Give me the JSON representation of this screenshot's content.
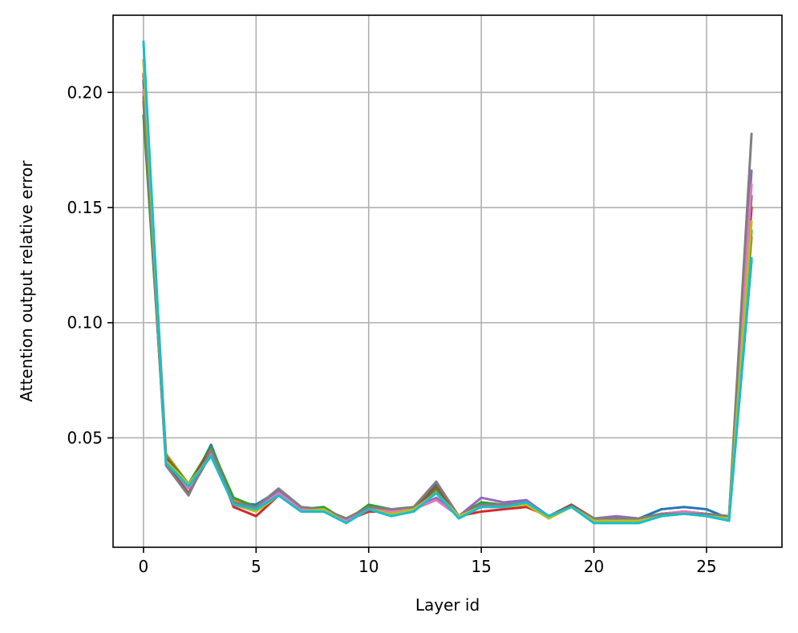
{
  "chart_data": {
    "type": "line",
    "title": "",
    "xlabel": "Layer id",
    "ylabel": "Attention output relative error",
    "xlim": [
      -1.35,
      28.35
    ],
    "ylim": [
      0.0025,
      0.2335
    ],
    "xticks": [
      0,
      5,
      10,
      15,
      20,
      25
    ],
    "xtick_labels": [
      "0",
      "5",
      "10",
      "15",
      "20",
      "25"
    ],
    "yticks": [
      0.05,
      0.1,
      0.15,
      0.2
    ],
    "ytick_labels": [
      "0.05",
      "0.10",
      "0.15",
      "0.20"
    ],
    "grid": true,
    "legend": "none",
    "x": [
      0,
      1,
      2,
      3,
      4,
      5,
      6,
      7,
      8,
      9,
      10,
      11,
      12,
      13,
      14,
      15,
      16,
      17,
      18,
      19,
      20,
      21,
      22,
      23,
      24,
      25,
      26,
      27
    ],
    "series": [
      {
        "color": "#1f77b4",
        "values": [
          0.205,
          0.04,
          0.028,
          0.047,
          0.022,
          0.021,
          0.027,
          0.019,
          0.018,
          0.014,
          0.02,
          0.018,
          0.019,
          0.03,
          0.016,
          0.022,
          0.021,
          0.022,
          0.016,
          0.02,
          0.015,
          0.015,
          0.015,
          0.019,
          0.02,
          0.019,
          0.015,
          0.127
        ]
      },
      {
        "color": "#ff7f0e",
        "values": [
          0.214,
          0.043,
          0.03,
          0.044,
          0.023,
          0.019,
          0.026,
          0.019,
          0.019,
          0.014,
          0.02,
          0.018,
          0.019,
          0.027,
          0.016,
          0.021,
          0.021,
          0.022,
          0.016,
          0.02,
          0.015,
          0.015,
          0.015,
          0.017,
          0.018,
          0.017,
          0.015,
          0.137
        ]
      },
      {
        "color": "#2ca02c",
        "values": [
          0.19,
          0.042,
          0.03,
          0.046,
          0.024,
          0.02,
          0.027,
          0.019,
          0.02,
          0.014,
          0.021,
          0.019,
          0.019,
          0.028,
          0.016,
          0.022,
          0.021,
          0.022,
          0.016,
          0.021,
          0.015,
          0.015,
          0.015,
          0.017,
          0.017,
          0.017,
          0.015,
          0.14
        ]
      },
      {
        "color": "#d62728",
        "values": [
          0.208,
          0.041,
          0.029,
          0.045,
          0.02,
          0.016,
          0.025,
          0.019,
          0.018,
          0.014,
          0.018,
          0.018,
          0.019,
          0.026,
          0.016,
          0.018,
          0.019,
          0.02,
          0.016,
          0.02,
          0.015,
          0.015,
          0.015,
          0.017,
          0.018,
          0.017,
          0.015,
          0.15
        ]
      },
      {
        "color": "#9467bd",
        "values": [
          0.2,
          0.04,
          0.028,
          0.044,
          0.022,
          0.019,
          0.027,
          0.019,
          0.019,
          0.014,
          0.02,
          0.018,
          0.019,
          0.024,
          0.016,
          0.024,
          0.022,
          0.023,
          0.016,
          0.02,
          0.015,
          0.016,
          0.015,
          0.017,
          0.018,
          0.017,
          0.016,
          0.166
        ]
      },
      {
        "color": "#8c564b",
        "values": [
          0.196,
          0.039,
          0.026,
          0.043,
          0.022,
          0.019,
          0.026,
          0.019,
          0.019,
          0.014,
          0.02,
          0.019,
          0.019,
          0.029,
          0.016,
          0.021,
          0.021,
          0.022,
          0.016,
          0.021,
          0.015,
          0.015,
          0.015,
          0.017,
          0.018,
          0.017,
          0.015,
          0.155
        ]
      },
      {
        "color": "#e377c2",
        "values": [
          0.201,
          0.04,
          0.028,
          0.043,
          0.022,
          0.019,
          0.026,
          0.019,
          0.019,
          0.014,
          0.02,
          0.018,
          0.019,
          0.023,
          0.016,
          0.021,
          0.021,
          0.022,
          0.016,
          0.02,
          0.015,
          0.015,
          0.015,
          0.017,
          0.018,
          0.017,
          0.015,
          0.16
        ]
      },
      {
        "color": "#7f7f7f",
        "values": [
          0.198,
          0.038,
          0.025,
          0.045,
          0.022,
          0.02,
          0.028,
          0.02,
          0.019,
          0.015,
          0.02,
          0.019,
          0.02,
          0.031,
          0.016,
          0.021,
          0.021,
          0.022,
          0.016,
          0.02,
          0.015,
          0.015,
          0.015,
          0.017,
          0.017,
          0.017,
          0.016,
          0.182
        ]
      },
      {
        "color": "#bcbd22",
        "values": [
          0.213,
          0.04,
          0.03,
          0.042,
          0.021,
          0.018,
          0.025,
          0.018,
          0.019,
          0.013,
          0.019,
          0.017,
          0.019,
          0.026,
          0.016,
          0.02,
          0.02,
          0.021,
          0.015,
          0.02,
          0.014,
          0.014,
          0.014,
          0.016,
          0.017,
          0.016,
          0.015,
          0.144
        ]
      },
      {
        "color": "#17becf",
        "values": [
          0.222,
          0.039,
          0.029,
          0.042,
          0.021,
          0.019,
          0.025,
          0.018,
          0.018,
          0.013,
          0.019,
          0.016,
          0.018,
          0.026,
          0.015,
          0.02,
          0.02,
          0.022,
          0.016,
          0.02,
          0.013,
          0.013,
          0.013,
          0.016,
          0.017,
          0.016,
          0.014,
          0.128
        ]
      }
    ]
  }
}
